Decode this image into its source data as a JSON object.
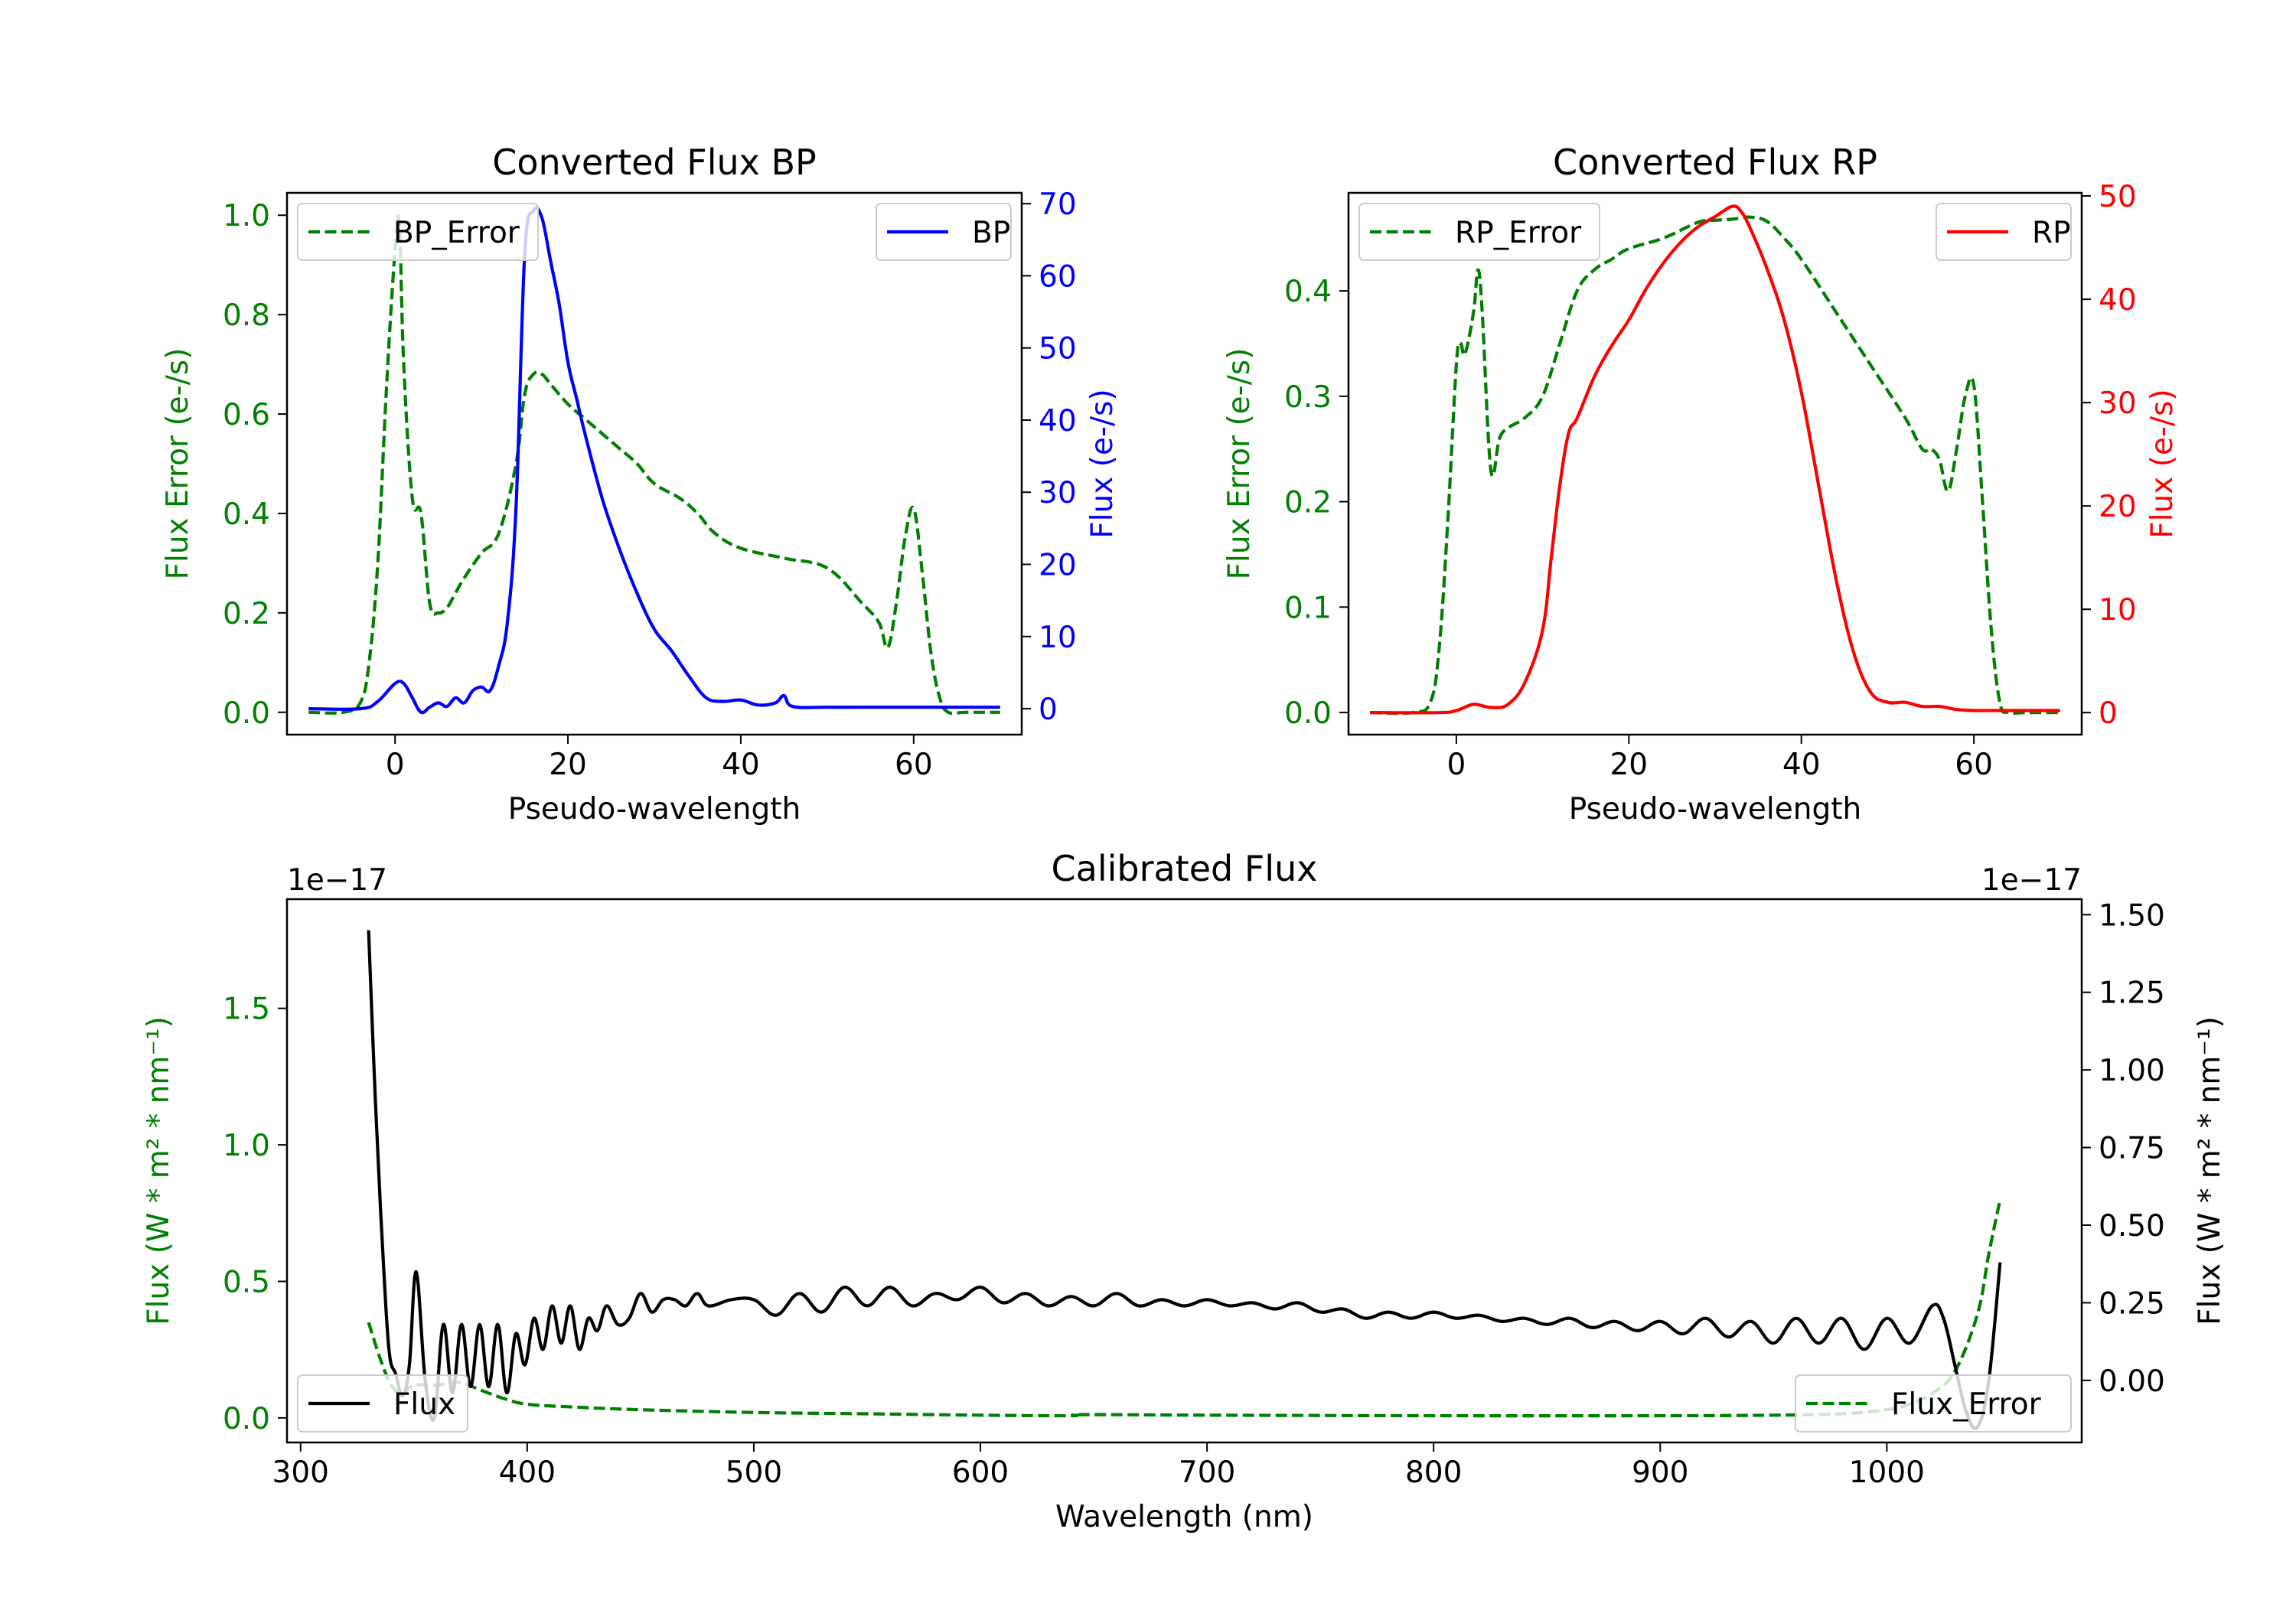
{
  "colors": {
    "green": "#008000",
    "blue": "#0000ff",
    "red": "#ff0000",
    "black": "#000000",
    "frame": "#000000",
    "legend_border": "#cccccc"
  },
  "chart_data": [
    {
      "id": "bp",
      "type": "line",
      "title": "Converted Flux BP",
      "xlabel": "Pseudo-wavelength",
      "ylabel_left": "Flux Error (e-/s)",
      "ylabel_right": "Flux (e-/s)",
      "xlim": [
        -12.5,
        72.5
      ],
      "ylim_left": [
        -0.045,
        1.045
      ],
      "ylim_right": [
        -3.6,
        71.5
      ],
      "xticks": [
        0,
        20,
        40,
        60
      ],
      "xtick_labels": [
        "0",
        "20",
        "40",
        "60"
      ],
      "yticks_left": [
        0.0,
        0.2,
        0.4,
        0.6,
        0.8,
        1.0
      ],
      "ytick_labels_left": [
        "0.0",
        "0.2",
        "0.4",
        "0.6",
        "0.8",
        "1.0"
      ],
      "yticks_right": [
        0,
        10,
        20,
        30,
        40,
        50,
        60,
        70
      ],
      "ytick_labels_right": [
        "0",
        "10",
        "20",
        "30",
        "40",
        "50",
        "60",
        "70"
      ],
      "left_axis_color": "green",
      "right_axis_color": "blue",
      "series": [
        {
          "name": "BP_Error",
          "axis": "left",
          "color": "green",
          "dash": true,
          "x": [
            -10,
            -6,
            -4,
            -3,
            -2,
            -1,
            0,
            0.5,
            1,
            2,
            3,
            4,
            5,
            6,
            7,
            8,
            10,
            12,
            14,
            15,
            16,
            17,
            18,
            20,
            22,
            24,
            26,
            28,
            30,
            33,
            35,
            37,
            40,
            45,
            50,
            54,
            56,
            57,
            58,
            59,
            60,
            61,
            62,
            63,
            64,
            66,
            70
          ],
          "y": [
            0.0,
            0.0,
            0.02,
            0.1,
            0.3,
            0.65,
            0.93,
            0.98,
            0.7,
            0.43,
            0.4,
            0.22,
            0.2,
            0.21,
            0.24,
            0.27,
            0.32,
            0.36,
            0.5,
            0.64,
            0.68,
            0.68,
            0.66,
            0.62,
            0.59,
            0.56,
            0.53,
            0.5,
            0.46,
            0.43,
            0.4,
            0.36,
            0.33,
            0.31,
            0.29,
            0.22,
            0.18,
            0.13,
            0.22,
            0.35,
            0.41,
            0.28,
            0.12,
            0.03,
            0.0,
            0.0,
            0.0
          ]
        },
        {
          "name": "BP",
          "axis": "right",
          "color": "blue",
          "dash": false,
          "x": [
            -10,
            -4,
            -2,
            0,
            1,
            2,
            3,
            4,
            5,
            6,
            7,
            8,
            9,
            10,
            11,
            12,
            13,
            14,
            15,
            16,
            17,
            18,
            19,
            20,
            21,
            22,
            24,
            26,
            28,
            30,
            32,
            34,
            36,
            38,
            40,
            42,
            44,
            45,
            46,
            50,
            55,
            60,
            62,
            65,
            70
          ],
          "y": [
            0,
            0,
            1,
            3.5,
            3.5,
            1.5,
            -0.5,
            0.2,
            0.8,
            0.3,
            1.5,
            0.8,
            2.5,
            3.0,
            2.5,
            6.0,
            12.0,
            28.0,
            63.0,
            69.0,
            68.0,
            62.0,
            56.0,
            48.0,
            43.0,
            38.0,
            29.0,
            22.0,
            16.0,
            11.0,
            8.0,
            4.5,
            1.5,
            1.0,
            1.2,
            0.5,
            0.8,
            1.8,
            0.3,
            0.2,
            0.2,
            0.2,
            0.2,
            0.2,
            0.2
          ]
        }
      ],
      "legend_left": {
        "label": "BP_Error",
        "placement": "upper-left"
      },
      "legend_right": {
        "label": "BP",
        "placement": "upper-right"
      }
    },
    {
      "id": "rp",
      "type": "line",
      "title": "Converted Flux RP",
      "xlabel": "Pseudo-wavelength",
      "ylabel_left": "Flux Error (e-/s)",
      "ylabel_right": "Flux (e-/s)",
      "xlim": [
        -12.5,
        72.5
      ],
      "ylim_left": [
        -0.021,
        0.493
      ],
      "ylim_right": [
        -2.13,
        50.3
      ],
      "xticks": [
        0,
        20,
        40,
        60
      ],
      "xtick_labels": [
        "0",
        "20",
        "40",
        "60"
      ],
      "yticks_left": [
        0.0,
        0.1,
        0.2,
        0.3,
        0.4
      ],
      "ytick_labels_left": [
        "0.0",
        "0.1",
        "0.2",
        "0.3",
        "0.4"
      ],
      "yticks_right": [
        0,
        10,
        20,
        30,
        40,
        50
      ],
      "ytick_labels_right": [
        "0",
        "10",
        "20",
        "30",
        "40",
        "50"
      ],
      "left_axis_color": "green",
      "right_axis_color": "red",
      "series": [
        {
          "name": "RP_Error",
          "axis": "left",
          "color": "green",
          "dash": true,
          "x": [
            -10,
            -5,
            -3,
            -2,
            -1,
            0,
            0.5,
            1,
            2,
            2.5,
            3,
            4,
            5,
            6,
            8,
            10,
            12,
            14,
            16,
            18,
            20,
            24,
            28,
            30,
            32,
            34,
            36,
            38,
            40,
            44,
            48,
            52,
            54,
            55,
            56,
            57,
            58,
            59,
            60,
            61,
            62,
            63,
            64,
            66,
            70
          ],
          "y": [
            0.0,
            0.0,
            0.01,
            0.06,
            0.18,
            0.33,
            0.35,
            0.34,
            0.38,
            0.42,
            0.38,
            0.23,
            0.26,
            0.27,
            0.28,
            0.3,
            0.35,
            0.4,
            0.42,
            0.43,
            0.44,
            0.45,
            0.465,
            0.467,
            0.468,
            0.47,
            0.466,
            0.45,
            0.43,
            0.38,
            0.33,
            0.28,
            0.25,
            0.25,
            0.24,
            0.21,
            0.25,
            0.3,
            0.31,
            0.2,
            0.08,
            0.01,
            0.0,
            0.0,
            0.0
          ]
        },
        {
          "name": "RP",
          "axis": "right",
          "color": "red",
          "dash": false,
          "x": [
            -10,
            -2,
            0,
            2,
            4,
            6,
            8,
            10,
            11,
            12,
            13,
            14,
            16,
            18,
            20,
            22,
            24,
            26,
            28,
            30,
            32,
            33,
            34,
            36,
            38,
            40,
            42,
            44,
            46,
            48,
            50,
            52,
            54,
            56,
            58,
            60,
            62,
            66,
            70
          ],
          "y": [
            0,
            0,
            0.2,
            0.8,
            0.5,
            0.8,
            3.0,
            8.0,
            15.0,
            22.0,
            27.0,
            28.5,
            32.5,
            35.5,
            38.0,
            41.0,
            43.5,
            45.5,
            47.0,
            48.0,
            49.0,
            48.5,
            47.0,
            43.0,
            38.0,
            31.0,
            22.0,
            13.0,
            6.0,
            2.0,
            1.0,
            1.0,
            0.6,
            0.6,
            0.3,
            0.2,
            0.2,
            0.2,
            0.2
          ]
        }
      ],
      "legend_left": {
        "label": "RP_Error",
        "placement": "upper-left"
      },
      "legend_right": {
        "label": "RP",
        "placement": "upper-right"
      }
    },
    {
      "id": "cal",
      "type": "line",
      "title": "Calibrated Flux",
      "xlabel": "Wavelength (nm)",
      "ylabel_left": "Flux (W * m² * nm⁻¹)",
      "ylabel_right": "Flux (W * m² * nm⁻¹)",
      "offset_left": "1e−17",
      "offset_right": "1e−17",
      "xlim": [
        294,
        1086
      ],
      "ylim_left": [
        -0.09,
        1.9
      ],
      "ylim_right": [
        -0.2,
        1.55
      ],
      "xticks": [
        300,
        400,
        500,
        600,
        700,
        800,
        900,
        1000
      ],
      "xtick_labels": [
        "300",
        "400",
        "500",
        "600",
        "700",
        "800",
        "900",
        "1000"
      ],
      "yticks_left": [
        0.0,
        0.5,
        1.0,
        1.5
      ],
      "ytick_labels_left": [
        "0.0",
        "0.5",
        "1.0",
        "1.5"
      ],
      "yticks_right": [
        0.0,
        0.25,
        0.5,
        0.75,
        1.0,
        1.25,
        1.5
      ],
      "ytick_labels_right": [
        "0.00",
        "0.25",
        "0.50",
        "0.75",
        "1.00",
        "1.25",
        "1.50"
      ],
      "left_axis_color": "green",
      "right_axis_color": "black",
      "series": [
        {
          "name": "Flux_Error",
          "axis": "left",
          "color": "green",
          "dash": true,
          "x": [
            330,
            335,
            340,
            345,
            350,
            360,
            370,
            380,
            390,
            400,
            420,
            450,
            500,
            550,
            600,
            640,
            645,
            700,
            800,
            900,
            950,
            980,
            1000,
            1010,
            1020,
            1030,
            1040,
            1045,
            1050
          ],
          "y": [
            0.35,
            0.22,
            0.12,
            0.09,
            0.12,
            0.12,
            0.13,
            0.1,
            0.07,
            0.05,
            0.04,
            0.03,
            0.02,
            0.015,
            0.01,
            0.008,
            0.012,
            0.01,
            0.008,
            0.008,
            0.01,
            0.015,
            0.03,
            0.05,
            0.09,
            0.17,
            0.38,
            0.6,
            0.8
          ]
        },
        {
          "name": "Flux",
          "axis": "right",
          "color": "black",
          "dash": false,
          "x": [
            330,
            333,
            336,
            339,
            342,
            345,
            348,
            351,
            355,
            359,
            363,
            367,
            371,
            375,
            379,
            383,
            387,
            391,
            395,
            399,
            403,
            407,
            411,
            415,
            419,
            423,
            427,
            431,
            435,
            440,
            445,
            450,
            455,
            460,
            465,
            470,
            475,
            480,
            490,
            500,
            510,
            520,
            530,
            540,
            550,
            560,
            570,
            580,
            590,
            600,
            610,
            620,
            630,
            640,
            650,
            660,
            670,
            680,
            690,
            700,
            710,
            720,
            730,
            740,
            750,
            760,
            770,
            780,
            790,
            800,
            810,
            820,
            830,
            840,
            850,
            860,
            870,
            880,
            890,
            900,
            910,
            920,
            930,
            940,
            950,
            960,
            970,
            980,
            990,
            1000,
            1010,
            1020,
            1025,
            1030,
            1035,
            1040,
            1045,
            1050
          ],
          "y": [
            1.45,
            0.9,
            0.45,
            0.1,
            0.02,
            -0.05,
            0.05,
            0.35,
            0.0,
            -0.12,
            0.18,
            -0.04,
            0.18,
            -0.02,
            0.18,
            -0.02,
            0.18,
            -0.04,
            0.15,
            0.05,
            0.2,
            0.1,
            0.24,
            0.12,
            0.24,
            0.1,
            0.2,
            0.16,
            0.24,
            0.18,
            0.2,
            0.28,
            0.22,
            0.26,
            0.26,
            0.24,
            0.28,
            0.24,
            0.26,
            0.26,
            0.21,
            0.28,
            0.22,
            0.3,
            0.24,
            0.3,
            0.24,
            0.28,
            0.26,
            0.3,
            0.25,
            0.28,
            0.24,
            0.27,
            0.24,
            0.28,
            0.24,
            0.26,
            0.24,
            0.26,
            0.24,
            0.25,
            0.23,
            0.25,
            0.22,
            0.23,
            0.2,
            0.22,
            0.2,
            0.22,
            0.2,
            0.21,
            0.19,
            0.2,
            0.18,
            0.2,
            0.17,
            0.19,
            0.16,
            0.19,
            0.15,
            0.2,
            0.14,
            0.19,
            0.12,
            0.2,
            0.12,
            0.2,
            0.1,
            0.2,
            0.12,
            0.24,
            0.2,
            0.05,
            -0.1,
            -0.15,
            0.0,
            0.38
          ]
        }
      ],
      "legend_left": {
        "label": "Flux",
        "placement": "lower-left"
      },
      "legend_right": {
        "label": "Flux_Error",
        "placement": "lower-right"
      }
    }
  ]
}
